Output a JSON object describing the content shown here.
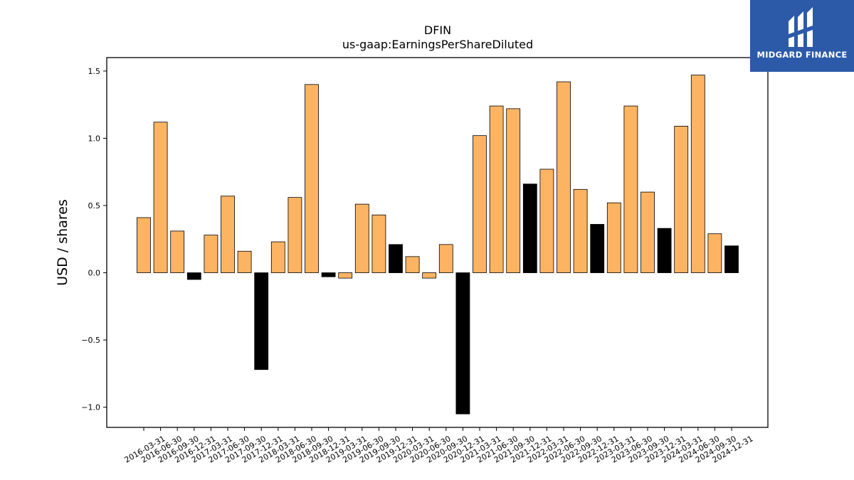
{
  "brand": {
    "name": "MIDGARD FINANCE",
    "background": "#2c5aa8"
  },
  "chart_data": {
    "type": "bar",
    "title": "DFIN",
    "subtitle": "us-gaap:EarningsPerShareDiluted",
    "xlabel": "",
    "ylabel": "USD / shares",
    "ylim": [
      -1.15,
      1.6
    ],
    "yticks": [
      -1.0,
      -0.5,
      0.0,
      0.5,
      1.0,
      1.5
    ],
    "ytick_labels": [
      "−1.0",
      "−0.5",
      "0.0",
      "0.5",
      "1.0",
      "1.5"
    ],
    "grid": false,
    "colors": {
      "quarter": "#fdb462",
      "annual": "#000000",
      "edge": "#000000"
    },
    "categories": [
      "2016-03-31",
      "2016-06-30",
      "2016-09-30",
      "2016-12-31",
      "2017-03-31",
      "2017-06-30",
      "2017-09-30",
      "2017-12-31",
      "2018-03-31",
      "2018-06-30",
      "2018-09-30",
      "2018-12-31",
      "2019-03-31",
      "2019-06-30",
      "2019-09-30",
      "2019-12-31",
      "2020-03-31",
      "2020-06-30",
      "2020-09-30",
      "2020-12-31",
      "2021-03-31",
      "2021-06-30",
      "2021-09-30",
      "2021-12-31",
      "2022-03-31",
      "2022-06-30",
      "2022-09-30",
      "2022-12-31",
      "2023-03-31",
      "2023-06-30",
      "2023-09-30",
      "2023-12-31",
      "2024-03-31",
      "2024-06-30",
      "2024-09-30",
      "2024-12-31"
    ],
    "values": [
      0.41,
      1.12,
      0.31,
      -0.05,
      0.28,
      0.57,
      0.16,
      -0.72,
      0.23,
      0.56,
      1.4,
      -0.03,
      -0.04,
      0.51,
      0.43,
      0.21,
      0.12,
      -0.04,
      0.21,
      -1.05,
      1.02,
      1.24,
      1.22,
      0.66,
      0.77,
      1.42,
      0.62,
      0.36,
      0.52,
      1.24,
      0.6,
      0.33,
      1.09,
      1.47,
      0.29,
      0.2
    ],
    "annual": [
      false,
      false,
      false,
      true,
      false,
      false,
      false,
      true,
      false,
      false,
      false,
      true,
      false,
      false,
      false,
      true,
      false,
      false,
      false,
      true,
      false,
      false,
      false,
      true,
      false,
      false,
      false,
      true,
      false,
      false,
      false,
      true,
      false,
      false,
      false,
      true
    ]
  }
}
